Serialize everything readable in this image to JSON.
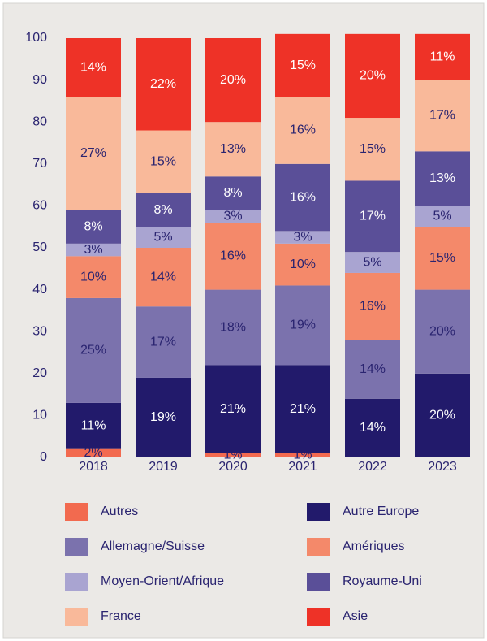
{
  "chart_data": {
    "type": "stacked_bar",
    "categories": [
      "2018",
      "2019",
      "2020",
      "2021",
      "2022",
      "2023"
    ],
    "ylim": [
      0,
      100
    ],
    "yticks": [
      0,
      10,
      20,
      30,
      40,
      50,
      60,
      70,
      80,
      90,
      100
    ],
    "series": [
      {
        "name": "Autres",
        "color": "#f26a4f",
        "values": [
          2,
          null,
          1,
          1,
          null,
          null
        ],
        "value_labels": [
          "2%",
          null,
          "1%",
          "1%",
          null,
          null
        ]
      },
      {
        "name": "Autre Europe",
        "color": "#221a6b",
        "values": [
          11,
          19,
          21,
          21,
          14,
          20
        ],
        "value_labels": [
          "11%",
          "19%",
          "21%",
          "21%",
          "14%",
          "20%"
        ]
      },
      {
        "name": "Allemagne/Suisse",
        "color": "#7b72ad",
        "values": [
          25,
          17,
          18,
          19,
          14,
          20
        ],
        "value_labels": [
          "25%",
          "17%",
          "18%",
          "19%",
          "14%",
          "20%"
        ]
      },
      {
        "name": "Amériques",
        "color": "#f4896a",
        "values": [
          10,
          14,
          16,
          10,
          16,
          15
        ],
        "value_labels": [
          "10%",
          "14%",
          "16%",
          "10%",
          "16%",
          "15%"
        ]
      },
      {
        "name": "Moyen-Orient/Afrique",
        "color": "#a9a4d1",
        "values": [
          3,
          5,
          3,
          3,
          5,
          5
        ],
        "value_labels": [
          "3%",
          "5%",
          "3%",
          "3%",
          "5%",
          "5%"
        ]
      },
      {
        "name": "Royaume-Uni",
        "color": "#5a4f98",
        "values": [
          8,
          8,
          8,
          16,
          17,
          13
        ],
        "value_labels": [
          "8%",
          "8%",
          "8%",
          "16%",
          "17%",
          "13%"
        ]
      },
      {
        "name": "France",
        "color": "#f9b99a",
        "values": [
          27,
          15,
          13,
          16,
          15,
          17
        ],
        "value_labels": [
          "27%",
          "15%",
          "13%",
          "16%",
          "15%",
          "17%"
        ]
      },
      {
        "name": "Asie",
        "color": "#ee3227",
        "values": [
          14,
          22,
          20,
          15,
          20,
          11
        ],
        "value_labels": [
          "14%",
          "22%",
          "20%",
          "15%",
          "20%",
          "11%"
        ]
      }
    ]
  }
}
